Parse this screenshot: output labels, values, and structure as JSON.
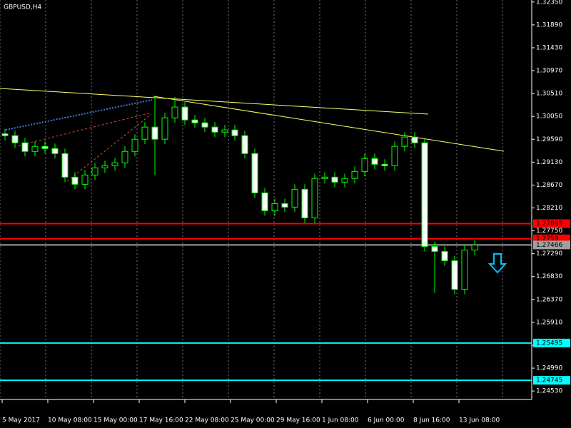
{
  "chart_data": {
    "type": "candlestick",
    "title": "GBPUSD,H4",
    "open": [
      1.297,
      1.29663,
      1.29519,
      1.29346,
      1.29447,
      1.29404,
      1.29303,
      1.28829,
      1.28685,
      1.28872,
      1.29016,
      1.29059,
      1.29117,
      1.29346,
      1.29591,
      1.29835,
      1.29591,
      1.30022,
      1.30238,
      1.29979,
      1.29921,
      1.29835,
      1.29734,
      1.29778,
      1.29663,
      1.29303,
      1.28513,
      1.28154,
      1.28297,
      1.28226,
      1.28585,
      1.2801,
      1.28801,
      1.28829,
      1.28729,
      1.28801,
      1.28944,
      1.29203,
      1.29088,
      1.29059,
      1.29447,
      1.29634,
      1.29519,
      1.27435,
      1.27335,
      1.27148,
      1.26573,
      1.27363
    ],
    "high": [
      1.298,
      1.29763,
      1.29619,
      1.29547,
      1.29547,
      1.29504,
      1.29403,
      1.28929,
      1.28972,
      1.29116,
      1.29159,
      1.29217,
      1.29446,
      1.29691,
      1.29935,
      1.3045,
      1.30122,
      1.3044,
      1.30338,
      1.30079,
      1.30021,
      1.29935,
      1.29878,
      1.29878,
      1.29763,
      1.29403,
      1.28613,
      1.28397,
      1.28397,
      1.28685,
      1.28685,
      1.28901,
      1.28929,
      1.28929,
      1.28901,
      1.29044,
      1.29303,
      1.29303,
      1.29188,
      1.29547,
      1.29734,
      1.29734,
      1.29619,
      1.27535,
      1.27435,
      1.27248,
      1.27463,
      1.27564
    ],
    "low": [
      1.29563,
      1.29419,
      1.29246,
      1.29246,
      1.29304,
      1.29203,
      1.28729,
      1.28585,
      1.28585,
      1.28772,
      1.28916,
      1.28959,
      1.29017,
      1.29246,
      1.29491,
      1.28872,
      1.29491,
      1.29922,
      1.29879,
      1.29821,
      1.29735,
      1.29634,
      1.29634,
      1.29563,
      1.29203,
      1.28413,
      1.28054,
      1.28054,
      1.28126,
      1.28126,
      1.2791,
      1.2791,
      1.28701,
      1.28629,
      1.28629,
      1.28701,
      1.28844,
      1.28988,
      1.28959,
      1.28959,
      1.29347,
      1.29419,
      1.27335,
      1.265,
      1.27048,
      1.26473,
      1.26473,
      1.27263
    ],
    "close": [
      1.29663,
      1.29519,
      1.29346,
      1.29447,
      1.29404,
      1.29303,
      1.28829,
      1.28685,
      1.28872,
      1.29016,
      1.29059,
      1.29117,
      1.29346,
      1.29591,
      1.29835,
      1.29591,
      1.30022,
      1.30238,
      1.29979,
      1.29921,
      1.29835,
      1.29734,
      1.29778,
      1.29663,
      1.29303,
      1.28513,
      1.28154,
      1.28297,
      1.28226,
      1.28585,
      1.2801,
      1.28801,
      1.28829,
      1.28729,
      1.28801,
      1.28944,
      1.29203,
      1.29088,
      1.29059,
      1.29447,
      1.29634,
      1.29519,
      1.27435,
      1.27335,
      1.27148,
      1.26573,
      1.27363,
      1.27464
    ],
    "color": "#00ff00",
    "x_labels": [
      "5 May 2017",
      "10 May 08:00",
      "15 May 00:00",
      "17 May 16:00",
      "22 May 08:00",
      "25 May 00:00",
      "29 May 16:00",
      "1 Jun 08:00",
      "6 Jun 00:00",
      "8 Jun 16:00",
      "13 Jun 08:00"
    ],
    "ylim": [
      1.2436,
      1.3239
    ],
    "yticks": [
      {
        "value": 1.3235,
        "label": "1.32350"
      },
      {
        "value": 1.3189,
        "label": "1.31890"
      },
      {
        "value": 1.3143,
        "label": "1.31430"
      },
      {
        "value": 1.3097,
        "label": "1.30970"
      },
      {
        "value": 1.3051,
        "label": "1.30510"
      },
      {
        "value": 1.3005,
        "label": "1.30050"
      },
      {
        "value": 1.2959,
        "label": "1.29590"
      },
      {
        "value": 1.2913,
        "label": "1.29130"
      },
      {
        "value": 1.2867,
        "label": "1.28670"
      },
      {
        "value": 1.2821,
        "label": "1.28210"
      },
      {
        "value": 1.2775,
        "label": "1.27750"
      },
      {
        "value": 1.2729,
        "label": "1.27290"
      },
      {
        "value": 1.2683,
        "label": "1.26830"
      },
      {
        "value": 1.2637,
        "label": "1.26370"
      },
      {
        "value": 1.2591,
        "label": "1.25910"
      },
      {
        "value": 1.2545,
        "label": "1.25450"
      },
      {
        "value": 1.2499,
        "label": "1.24990"
      },
      {
        "value": 1.2453,
        "label": "1.24530"
      }
    ],
    "grid": true,
    "levels": [
      {
        "value": 1.27895,
        "color": "#ff0000"
      },
      {
        "value": 1.2759,
        "color": "#ff0000"
      },
      {
        "value": 1.27466,
        "color": "#a0a0a0"
      },
      {
        "value": 1.25495,
        "color": "#00ffff"
      },
      {
        "value": 1.24745,
        "color": "#00ffff"
      }
    ]
  }
}
